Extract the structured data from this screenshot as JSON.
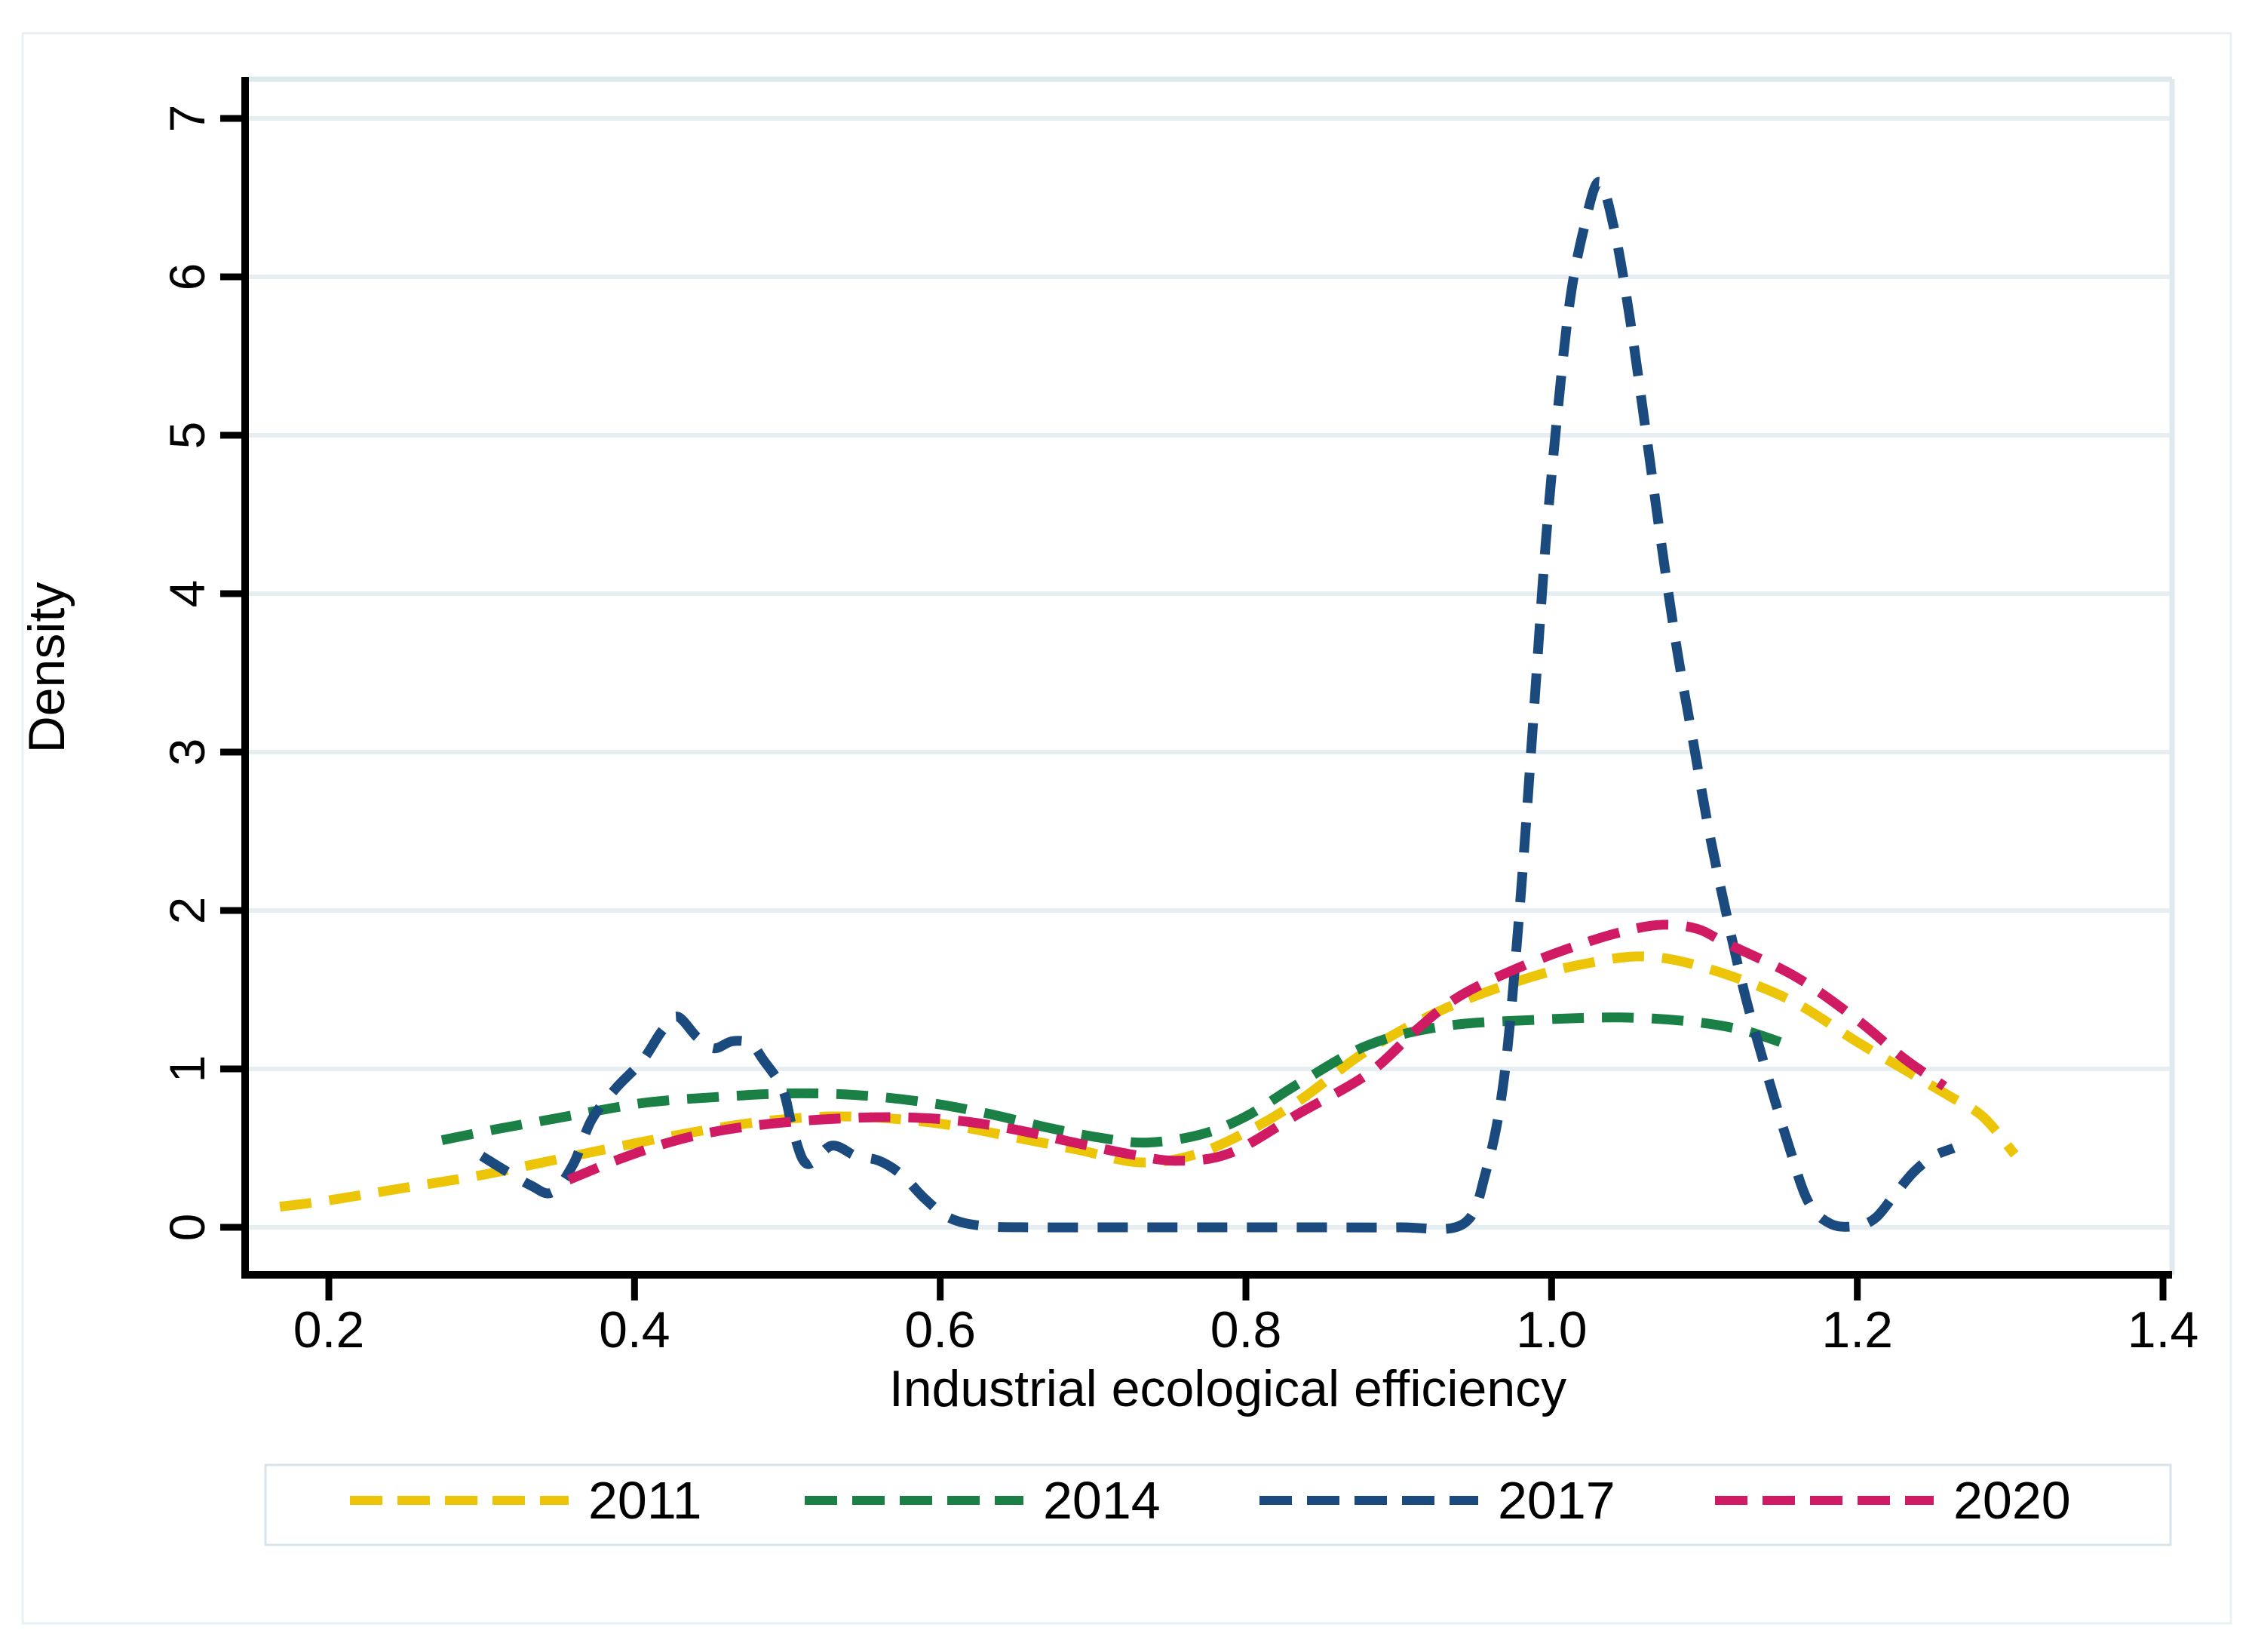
{
  "figure": {
    "background": "#ffffff",
    "outer_border_color": "#e9f0f3"
  },
  "theme": {
    "axis_color": "#000000",
    "grid_color": "#e7eef1",
    "frame_color": "#dfe9ec",
    "legend_border_color": "#d9e4ea",
    "text_color": "#000000"
  },
  "axes": {
    "x_tick_labels": [
      "0.2",
      "0.4",
      "0.6",
      "0.8",
      "1.0",
      "1.2",
      "1.4"
    ],
    "y_tick_labels": [
      "0",
      "1",
      "2",
      "3",
      "4",
      "5",
      "6",
      "7"
    ]
  },
  "chart_data": {
    "type": "line",
    "title": "",
    "xlabel": "Industrial ecological efficiency",
    "ylabel": "Density",
    "xlim": [
      0.145,
      1.419
    ],
    "ylim": [
      0,
      7.25
    ],
    "x_ticks": [
      0.2,
      0.4,
      0.6,
      0.8,
      1.0,
      1.2,
      1.4
    ],
    "y_ticks": [
      0,
      1,
      2,
      3,
      4,
      5,
      6,
      7
    ],
    "grid": "horizontal",
    "legend_position": "bottom",
    "line_style": "dashed",
    "series": [
      {
        "name": "2011",
        "color": "#ecc408",
        "dash": [
          42,
          24
        ],
        "points": [
          [
            0.168,
            0.13
          ],
          [
            0.2,
            0.17
          ],
          [
            0.25,
            0.25
          ],
          [
            0.3,
            0.33
          ],
          [
            0.35,
            0.43
          ],
          [
            0.4,
            0.53
          ],
          [
            0.45,
            0.62
          ],
          [
            0.49,
            0.675
          ],
          [
            0.53,
            0.7
          ],
          [
            0.57,
            0.685
          ],
          [
            0.61,
            0.64
          ],
          [
            0.65,
            0.565
          ],
          [
            0.69,
            0.49
          ],
          [
            0.73,
            0.41
          ],
          [
            0.765,
            0.455
          ],
          [
            0.8,
            0.6
          ],
          [
            0.835,
            0.8
          ],
          [
            0.88,
            1.12
          ],
          [
            0.93,
            1.38
          ],
          [
            0.98,
            1.56
          ],
          [
            1.02,
            1.66
          ],
          [
            1.06,
            1.71
          ],
          [
            1.1,
            1.64
          ],
          [
            1.155,
            1.44
          ],
          [
            1.2,
            1.17
          ],
          [
            1.23,
            1.0
          ],
          [
            1.26,
            0.83
          ],
          [
            1.282,
            0.7
          ],
          [
            1.303,
            0.46
          ]
        ]
      },
      {
        "name": "2014",
        "color": "#1a8046",
        "dash": [
          42,
          24
        ],
        "points": [
          [
            0.274,
            0.55
          ],
          [
            0.31,
            0.62
          ],
          [
            0.35,
            0.69
          ],
          [
            0.378,
            0.74
          ],
          [
            0.41,
            0.79
          ],
          [
            0.45,
            0.82
          ],
          [
            0.5,
            0.845
          ],
          [
            0.545,
            0.835
          ],
          [
            0.59,
            0.79
          ],
          [
            0.63,
            0.72
          ],
          [
            0.67,
            0.63
          ],
          [
            0.705,
            0.565
          ],
          [
            0.735,
            0.535
          ],
          [
            0.77,
            0.585
          ],
          [
            0.8,
            0.7
          ],
          [
            0.835,
            0.91
          ],
          [
            0.88,
            1.15
          ],
          [
            0.93,
            1.27
          ],
          [
            0.99,
            1.31
          ],
          [
            1.045,
            1.325
          ],
          [
            1.09,
            1.3
          ],
          [
            1.125,
            1.245
          ],
          [
            1.158,
            1.14
          ]
        ]
      },
      {
        "name": "2017",
        "color": "#1b4a7e",
        "dash": [
          40,
          26
        ],
        "points": [
          [
            0.3,
            0.45
          ],
          [
            0.316,
            0.355
          ],
          [
            0.332,
            0.265
          ],
          [
            0.346,
            0.22
          ],
          [
            0.36,
            0.4
          ],
          [
            0.372,
            0.68
          ],
          [
            0.388,
            0.88
          ],
          [
            0.405,
            1.05
          ],
          [
            0.418,
            1.24
          ],
          [
            0.428,
            1.33
          ],
          [
            0.441,
            1.2
          ],
          [
            0.452,
            1.13
          ],
          [
            0.464,
            1.175
          ],
          [
            0.476,
            1.16
          ],
          [
            0.484,
            1.06
          ],
          [
            0.497,
            0.87
          ],
          [
            0.504,
            0.6
          ],
          [
            0.513,
            0.4
          ],
          [
            0.529,
            0.515
          ],
          [
            0.545,
            0.45
          ],
          [
            0.56,
            0.42
          ],
          [
            0.575,
            0.33
          ],
          [
            0.59,
            0.18
          ],
          [
            0.606,
            0.06
          ],
          [
            0.627,
            0.01
          ],
          [
            0.66,
            0
          ],
          [
            0.72,
            0
          ],
          [
            0.78,
            0
          ],
          [
            0.85,
            0
          ],
          [
            0.9,
            0
          ],
          [
            0.942,
            0.02
          ],
          [
            0.957,
            0.35
          ],
          [
            0.969,
            0.95
          ],
          [
            0.979,
            2.0
          ],
          [
            0.988,
            3.2
          ],
          [
            0.996,
            4.3
          ],
          [
            1.004,
            5.15
          ],
          [
            1.012,
            5.85
          ],
          [
            1.021,
            6.3
          ],
          [
            1.031,
            6.6
          ],
          [
            1.041,
            6.3
          ],
          [
            1.051,
            5.75
          ],
          [
            1.062,
            5.0
          ],
          [
            1.072,
            4.3
          ],
          [
            1.082,
            3.65
          ],
          [
            1.092,
            3.1
          ],
          [
            1.103,
            2.5
          ],
          [
            1.115,
            1.95
          ],
          [
            1.127,
            1.45
          ],
          [
            1.14,
            1.0
          ],
          [
            1.155,
            0.52
          ],
          [
            1.168,
            0.16
          ],
          [
            1.183,
            0.02
          ],
          [
            1.2,
            0.01
          ],
          [
            1.212,
            0.06
          ],
          [
            1.224,
            0.2
          ],
          [
            1.237,
            0.35
          ],
          [
            1.25,
            0.45
          ],
          [
            1.263,
            0.5
          ]
        ]
      },
      {
        "name": "2020",
        "color": "#d01a64",
        "dash": [
          42,
          24
        ],
        "points": [
          [
            0.357,
            0.3
          ],
          [
            0.39,
            0.43
          ],
          [
            0.424,
            0.54
          ],
          [
            0.456,
            0.61
          ],
          [
            0.49,
            0.655
          ],
          [
            0.53,
            0.685
          ],
          [
            0.57,
            0.695
          ],
          [
            0.61,
            0.675
          ],
          [
            0.65,
            0.615
          ],
          [
            0.69,
            0.53
          ],
          [
            0.725,
            0.46
          ],
          [
            0.755,
            0.42
          ],
          [
            0.79,
            0.47
          ],
          [
            0.835,
            0.72
          ],
          [
            0.88,
            0.97
          ],
          [
            0.912,
            1.25
          ],
          [
            0.94,
            1.46
          ],
          [
            0.98,
            1.645
          ],
          [
            1.02,
            1.79
          ],
          [
            1.05,
            1.875
          ],
          [
            1.073,
            1.91
          ],
          [
            1.095,
            1.885
          ],
          [
            1.115,
            1.79
          ],
          [
            1.16,
            1.58
          ],
          [
            1.2,
            1.31
          ],
          [
            1.23,
            1.07
          ],
          [
            1.257,
            0.89
          ]
        ]
      }
    ]
  }
}
